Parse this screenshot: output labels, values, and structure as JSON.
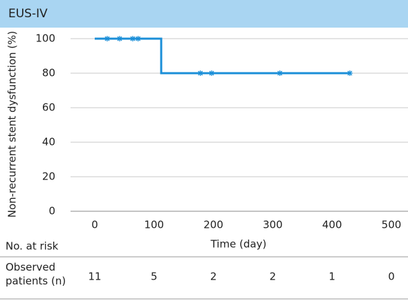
{
  "header": {
    "title": "EUS-IV"
  },
  "chart_data": {
    "type": "line",
    "x_label": "Time (day)",
    "y_label": "Non-recurrent stent dysfunction (%)",
    "series": [
      {
        "color": "#1b8fd8",
        "x": [
          0,
          112,
          112,
          430
        ],
        "values": [
          100,
          100,
          80,
          80
        ]
      }
    ],
    "censored": {
      "color": "#1b8fd8",
      "x": [
        21,
        42,
        64,
        73,
        178,
        197,
        312,
        430
      ],
      "values": [
        100,
        100,
        100,
        100,
        80,
        80,
        80,
        80
      ]
    },
    "xlim": [
      0,
      500
    ],
    "xticks": [
      0,
      100,
      200,
      300,
      400,
      500
    ],
    "ylim": [
      0,
      100
    ],
    "yticks": [
      0,
      20,
      40,
      60,
      80,
      100
    ],
    "grid": true
  },
  "risk_table": {
    "title": "No. at risk",
    "row_label": "Observed patients (n)",
    "values": [
      11,
      5,
      2,
      2,
      1,
      0
    ]
  }
}
